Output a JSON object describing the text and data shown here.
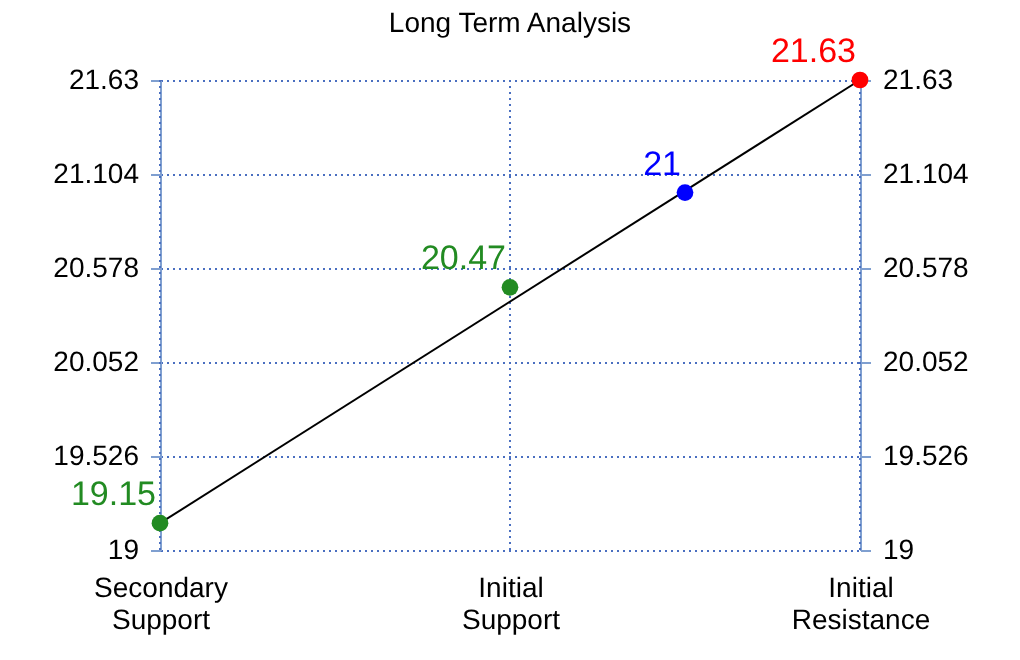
{
  "chart_data": {
    "type": "scatter",
    "title": "Long Term Analysis",
    "categories": [
      "Secondary Support",
      null,
      "Initial Support",
      null,
      "Initial Resistance"
    ],
    "ylim": [
      19,
      21.63
    ],
    "yticks": [
      19,
      19.526,
      20.052,
      20.578,
      21.104,
      21.63
    ],
    "y2lim": [
      19,
      21.63
    ],
    "y2ticks": [
      19,
      19.526,
      20.052,
      20.578,
      21.104,
      21.63
    ],
    "grid": true,
    "marker": "circle",
    "series": [
      {
        "type": "line",
        "color": "#000000",
        "marker": "none",
        "x": [
          "Secondary Support",
          "Initial Resistance"
        ],
        "values": [
          19.15,
          21.63
        ]
      },
      {
        "values": [
          19.15,
          null,
          20.47,
          21,
          21.63
        ],
        "value_labels": [
          "19.15",
          null,
          "20.47",
          "21",
          "21.63"
        ],
        "colors": [
          "#228b22",
          null,
          "#228b22",
          "#0000ff",
          "#ff0000"
        ]
      }
    ]
  }
}
